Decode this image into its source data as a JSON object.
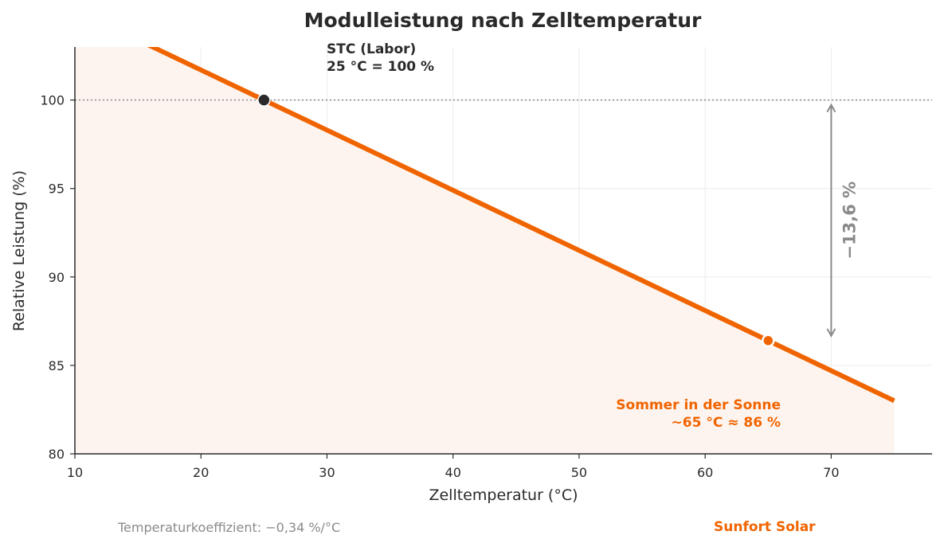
{
  "chart_data": {
    "type": "line",
    "title": "Modulleistung nach Zelltemperatur",
    "xlabel": "Zelltemperatur (°C)",
    "ylabel": "Relative Leistung (%)",
    "xlim": [
      10,
      78
    ],
    "ylim": [
      80,
      103
    ],
    "x_ticks": [
      10,
      20,
      30,
      40,
      50,
      60,
      70
    ],
    "y_ticks": [
      80,
      85,
      90,
      95,
      100
    ],
    "grid": true,
    "series": [
      {
        "x": [
          10,
          75
        ],
        "y": [
          105.1,
          83.0
        ],
        "color": "#f06400"
      }
    ],
    "reference_line": {
      "y": 100
    },
    "points": [
      {
        "x": 25,
        "y": 100,
        "color": "#2a2a2a",
        "label_line1": "STC (Labor)",
        "label_line2": "25 °C = 100 %"
      },
      {
        "x": 65,
        "y": 86.4,
        "color": "#f06400",
        "label_line1": "Sommer in der Sonne",
        "label_line2": "~65 °C ≈ 86 %"
      }
    ],
    "delta_arrow": {
      "x": 70,
      "y_from": 100,
      "y_to": 86.4,
      "label": "−13,6 %",
      "color": "#8a8a8a"
    }
  },
  "footer": {
    "note": "Temperaturkoeffizient: −0,34 %/°C",
    "brand": "Sunfort Solar"
  }
}
